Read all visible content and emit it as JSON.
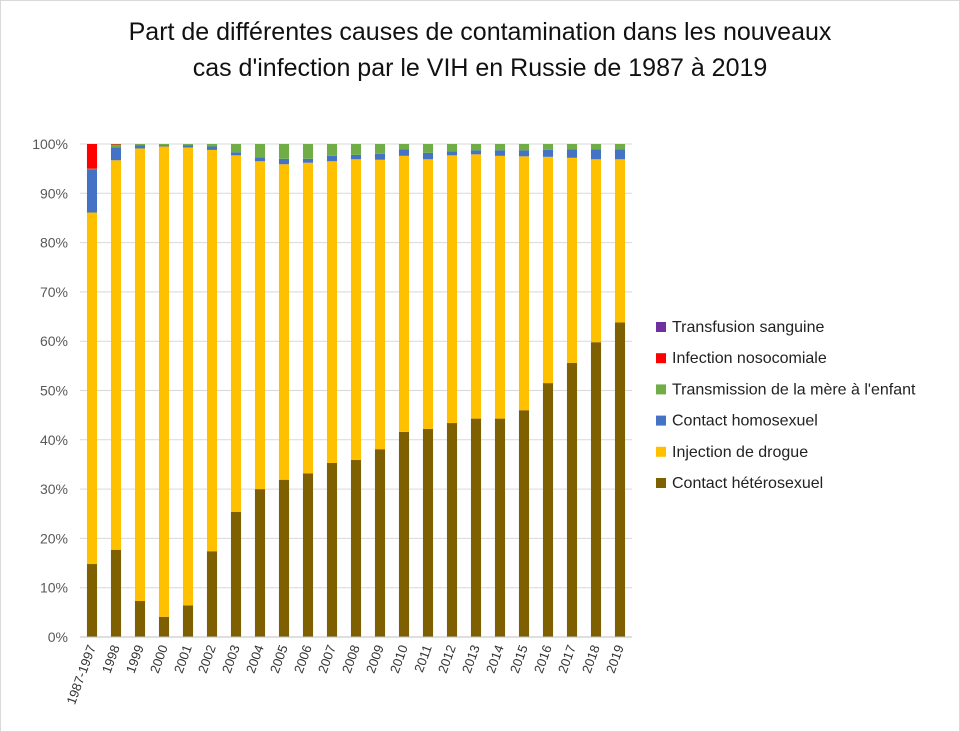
{
  "chart_data": {
    "type": "bar",
    "stacked": true,
    "percent_stacked": true,
    "title_lines": [
      "Part de différentes causes de contamination dans les nouveaux",
      "cas d'infection par le VIH en Russie de 1987 à 2019"
    ],
    "xlabel": "",
    "ylabel": "",
    "ylim": [
      0,
      100
    ],
    "y_ticks": [
      "0%",
      "10%",
      "20%",
      "30%",
      "40%",
      "50%",
      "60%",
      "70%",
      "80%",
      "90%",
      "100%"
    ],
    "grid": true,
    "legend_position": "right",
    "categories": [
      "1987-1997",
      "1998",
      "1999",
      "2000",
      "2001",
      "2002",
      "2003",
      "2004",
      "2005",
      "2006",
      "2007",
      "2008",
      "2009",
      "2010",
      "2011",
      "2012",
      "2013",
      "2014",
      "2015",
      "2016",
      "2017",
      "2018",
      "2019"
    ],
    "series": [
      {
        "name": "Contact hétérosexuel",
        "color": "#7f6000",
        "values": [
          14.8,
          17.7,
          7.3,
          4.1,
          6.4,
          17.4,
          25.4,
          30.0,
          31.9,
          33.2,
          35.3,
          35.9,
          38.1,
          41.6,
          42.2,
          43.4,
          44.3,
          44.3,
          46.0,
          51.5,
          55.6,
          59.8,
          63.8
        ]
      },
      {
        "name": "Injection de drogue",
        "color": "#ffc000",
        "values": [
          71.3,
          79.0,
          91.8,
          95.4,
          92.9,
          81.4,
          72.3,
          66.5,
          64.0,
          63.0,
          61.2,
          61.0,
          58.7,
          56.0,
          54.7,
          54.3,
          53.6,
          53.3,
          51.5,
          45.9,
          41.6,
          37.1,
          33.1
        ]
      },
      {
        "name": "Contact homosexuel",
        "color": "#4472c4",
        "values": [
          8.8,
          2.6,
          0.6,
          0.2,
          0.4,
          0.7,
          0.6,
          0.8,
          1.1,
          0.8,
          1.1,
          0.9,
          1.2,
          1.3,
          1.3,
          0.8,
          0.8,
          1.1,
          1.2,
          1.4,
          1.7,
          2.0,
          2.0
        ]
      },
      {
        "name": "Transmission de la mère à l'enfant",
        "color": "#70ad47",
        "values": [
          0.1,
          0.6,
          0.3,
          0.3,
          0.3,
          0.5,
          1.7,
          2.7,
          3.0,
          3.0,
          2.4,
          2.2,
          2.0,
          1.1,
          1.8,
          1.5,
          1.3,
          1.3,
          1.3,
          1.2,
          1.1,
          1.1,
          1.1
        ]
      },
      {
        "name": "Infection nosocomiale",
        "color": "#ff0000",
        "values": [
          5.0,
          0.1,
          0,
          0,
          0,
          0,
          0,
          0,
          0,
          0,
          0,
          0,
          0,
          0,
          0,
          0,
          0,
          0,
          0,
          0,
          0,
          0,
          0
        ]
      },
      {
        "name": "Transfusion sanguine",
        "color": "#7030a0",
        "values": [
          0,
          0,
          0,
          0,
          0,
          0,
          0,
          0,
          0,
          0,
          0,
          0,
          0,
          0,
          0,
          0,
          0,
          0,
          0,
          0,
          0,
          0,
          0
        ]
      }
    ]
  }
}
